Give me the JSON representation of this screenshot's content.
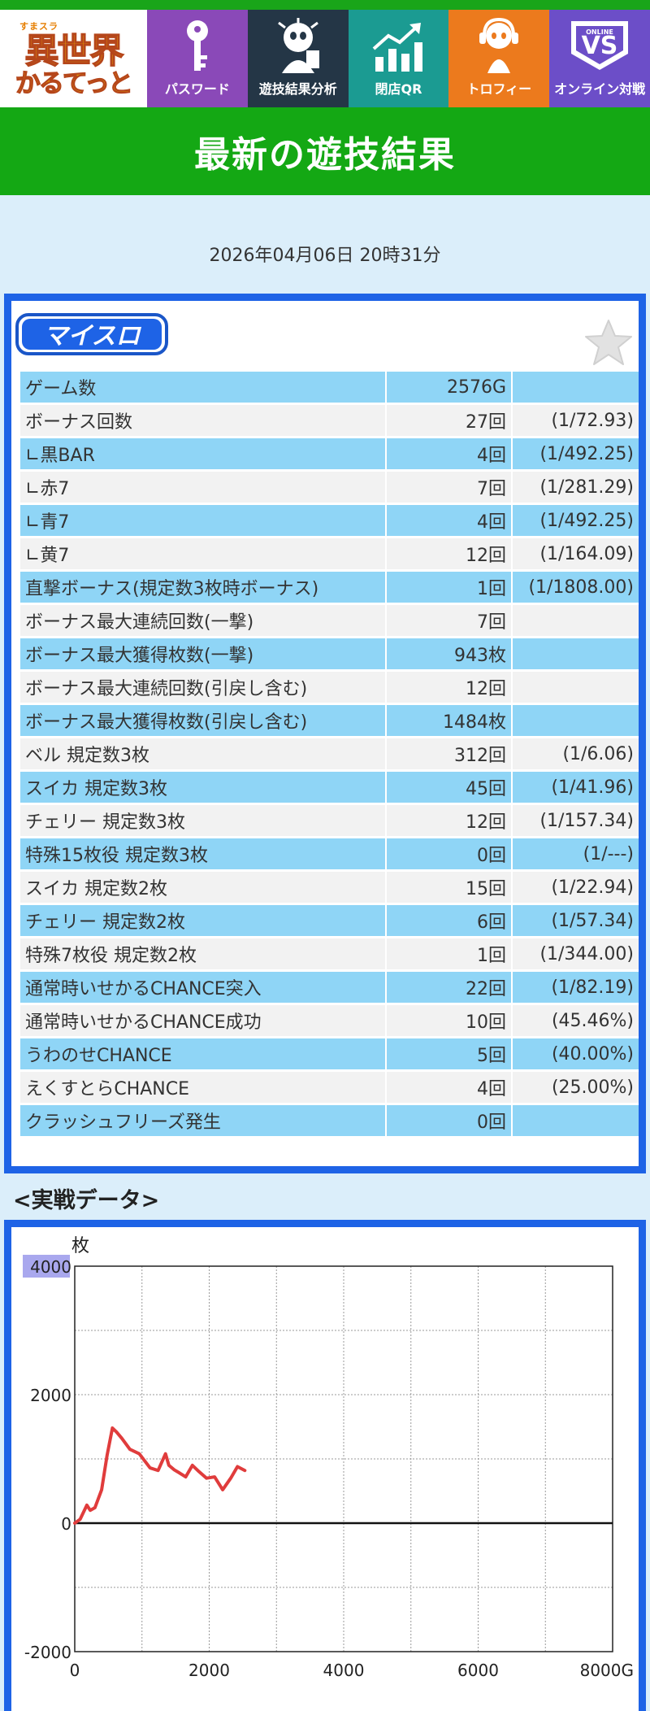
{
  "nav": {
    "logo": {
      "small": "すまスラ",
      "line1": "異世界",
      "line2": "かるてっと"
    },
    "items": [
      {
        "label": "パスワード",
        "icon": "key-icon"
      },
      {
        "label": "遊技結果分析",
        "icon": "character-icon"
      },
      {
        "label": "閉店QR",
        "icon": "chart-up-icon"
      },
      {
        "label": "トロフィー",
        "icon": "trophy-character-icon"
      },
      {
        "label": "オンライン対戦",
        "icon": "online-vs-icon"
      }
    ]
  },
  "banner": {
    "title": "最新の遊技結果"
  },
  "datetime": "2026年04月06日 20時31分",
  "myslo_logo": "マイスロ",
  "stats": [
    {
      "label": "ゲーム数",
      "value": "2576G",
      "rate": ""
    },
    {
      "label": "ボーナス回数",
      "value": "27回",
      "rate": "(1/72.93)"
    },
    {
      "label": "∟黒BAR",
      "value": "4回",
      "rate": "(1/492.25)"
    },
    {
      "label": "∟赤7",
      "value": "7回",
      "rate": "(1/281.29)"
    },
    {
      "label": "∟青7",
      "value": "4回",
      "rate": "(1/492.25)"
    },
    {
      "label": "∟黄7",
      "value": "12回",
      "rate": "(1/164.09)"
    },
    {
      "label": "直撃ボーナス(規定数3枚時ボーナス)",
      "value": "1回",
      "rate": "(1/1808.00)"
    },
    {
      "label": "ボーナス最大連続回数(一撃)",
      "value": "7回",
      "rate": ""
    },
    {
      "label": "ボーナス最大獲得枚数(一撃)",
      "value": "943枚",
      "rate": ""
    },
    {
      "label": "ボーナス最大連続回数(引戻し含む)",
      "value": "12回",
      "rate": ""
    },
    {
      "label": "ボーナス最大獲得枚数(引戻し含む)",
      "value": "1484枚",
      "rate": ""
    },
    {
      "label": "ベル 規定数3枚",
      "value": "312回",
      "rate": "(1/6.06)"
    },
    {
      "label": "スイカ 規定数3枚",
      "value": "45回",
      "rate": "(1/41.96)"
    },
    {
      "label": "チェリー 規定数3枚",
      "value": "12回",
      "rate": "(1/157.34)"
    },
    {
      "label": "特殊15枚役 規定数3枚",
      "value": "0回",
      "rate": "(1/---)"
    },
    {
      "label": "スイカ 規定数2枚",
      "value": "15回",
      "rate": "(1/22.94)"
    },
    {
      "label": "チェリー 規定数2枚",
      "value": "6回",
      "rate": "(1/57.34)"
    },
    {
      "label": "特殊7枚役 規定数2枚",
      "value": "1回",
      "rate": "(1/344.00)"
    },
    {
      "label": "通常時いせかるCHANCE突入",
      "value": "22回",
      "rate": "(1/82.19)"
    },
    {
      "label": "通常時いせかるCHANCE成功",
      "value": "10回",
      "rate": "(45.46%)"
    },
    {
      "label": "うわのせCHANCE",
      "value": "5回",
      "rate": "(40.00%)"
    },
    {
      "label": "えくすとらCHANCE",
      "value": "4回",
      "rate": "(25.00%)"
    },
    {
      "label": "クラッシュフリーズ発生",
      "value": "0回",
      "rate": ""
    }
  ],
  "section_heading": "<実戦データ>",
  "chart_data": {
    "type": "line",
    "title": "",
    "ylabel": "枚",
    "xlabel": "",
    "xlim": [
      0,
      8000
    ],
    "ylim": [
      -2000,
      4000
    ],
    "x_ticks": [
      "0",
      "2000",
      "4000",
      "6000",
      "8000G"
    ],
    "y_ticks": [
      "4000",
      "2000",
      "0",
      "-2000"
    ],
    "grid": true,
    "series": [
      {
        "color": "#e03c3c",
        "x": [
          0,
          80,
          180,
          230,
          300,
          400,
          480,
          560,
          620,
          700,
          820,
          960,
          1120,
          1240,
          1350,
          1400,
          1480,
          1560,
          1650,
          1750,
          1850,
          1960,
          2080,
          2200,
          2320,
          2420,
          2530
        ],
        "y": [
          0,
          60,
          280,
          200,
          240,
          520,
          1050,
          1480,
          1420,
          1320,
          1150,
          1080,
          860,
          820,
          1080,
          900,
          830,
          780,
          720,
          900,
          800,
          700,
          720,
          520,
          700,
          880,
          820
        ]
      }
    ]
  },
  "colors": {
    "accent_blue": "#1e63e6",
    "banner_green": "#14a814",
    "row_blue": "#8fd5f6",
    "row_gray": "#f2f2f2",
    "line_red": "#e03c3c"
  }
}
